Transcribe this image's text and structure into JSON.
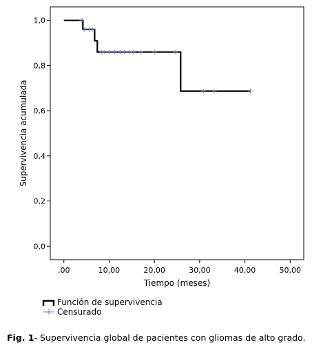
{
  "chart_data": {
    "type": "line",
    "subtype": "kaplan-meier step curve",
    "xlabel": "Tiempo (meses)",
    "ylabel": "Supervivencia acumulada",
    "xlim": [
      -3,
      53
    ],
    "ylim": [
      -0.06,
      1.06
    ],
    "xticks": [
      0,
      10,
      20,
      30,
      40,
      50
    ],
    "xtick_labels": [
      ",00",
      "10,00",
      "20,00",
      "30,00",
      "40,00",
      "50,00"
    ],
    "yticks": [
      0,
      0.2,
      0.4,
      0.6,
      0.8,
      1.0
    ],
    "ytick_labels": [
      "0,0",
      "0,2",
      "0,4",
      "0,6",
      "0,8",
      "1,0"
    ],
    "grid": false,
    "legend_position": "bottom-left, below plot",
    "series": [
      {
        "name": "Función de supervivencia",
        "color": "#000000",
        "steps": [
          [
            0,
            1.0
          ],
          [
            4.2,
            0.96
          ],
          [
            6.8,
            0.91
          ],
          [
            7.4,
            0.86
          ],
          [
            25.8,
            0.687
          ],
          [
            41.2,
            0.687
          ]
        ]
      },
      {
        "name": "Censurado",
        "color": "#6a7ab8",
        "marker": "plus",
        "points": [
          [
            4.0,
            1.0
          ],
          [
            4.6,
            0.96
          ],
          [
            5.6,
            0.96
          ],
          [
            6.3,
            0.96
          ],
          [
            8.4,
            0.86
          ],
          [
            8.9,
            0.86
          ],
          [
            10.0,
            0.86
          ],
          [
            11.2,
            0.86
          ],
          [
            12.4,
            0.86
          ],
          [
            13.4,
            0.86
          ],
          [
            14.4,
            0.86
          ],
          [
            15.3,
            0.86
          ],
          [
            17.0,
            0.86
          ],
          [
            20.0,
            0.86
          ],
          [
            24.7,
            0.86
          ],
          [
            30.8,
            0.687
          ],
          [
            33.2,
            0.687
          ],
          [
            41.2,
            0.687
          ]
        ]
      }
    ]
  },
  "caption": {
    "label": "Fig. 1",
    "text": "- Supervivencia global de pacientes con gliomas de alto grado."
  }
}
